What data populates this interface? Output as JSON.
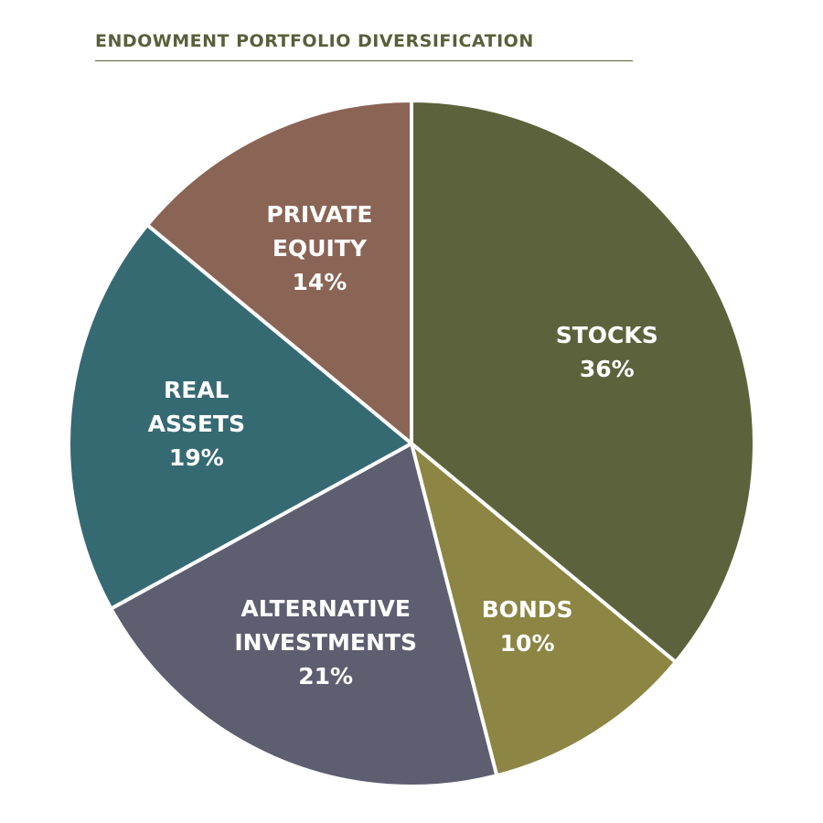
{
  "chart_data": {
    "type": "pie",
    "title": "ENDOWMENT PORTFOLIO DIVERSIFICATION",
    "slices": [
      {
        "label_lines": [
          "STOCKS"
        ],
        "value": 36,
        "value_text": "36%",
        "color": "#5c633c"
      },
      {
        "label_lines": [
          "BONDS"
        ],
        "value": 10,
        "value_text": "10%",
        "color": "#8c8543"
      },
      {
        "label_lines": [
          "ALTERNATIVE",
          "INVESTMENTS"
        ],
        "value": 21,
        "value_text": "21%",
        "color": "#5d5f70"
      },
      {
        "label_lines": [
          "REAL",
          "ASSETS"
        ],
        "value": 19,
        "value_text": "19%",
        "color": "#366a72"
      },
      {
        "label_lines": [
          "PRIVATE",
          "EQUITY"
        ],
        "value": 14,
        "value_text": "14%",
        "color": "#8a6455"
      }
    ],
    "start_angle_deg": 0,
    "direction": "clockwise",
    "legend": "none",
    "title_color": "#5a5f3b"
  }
}
